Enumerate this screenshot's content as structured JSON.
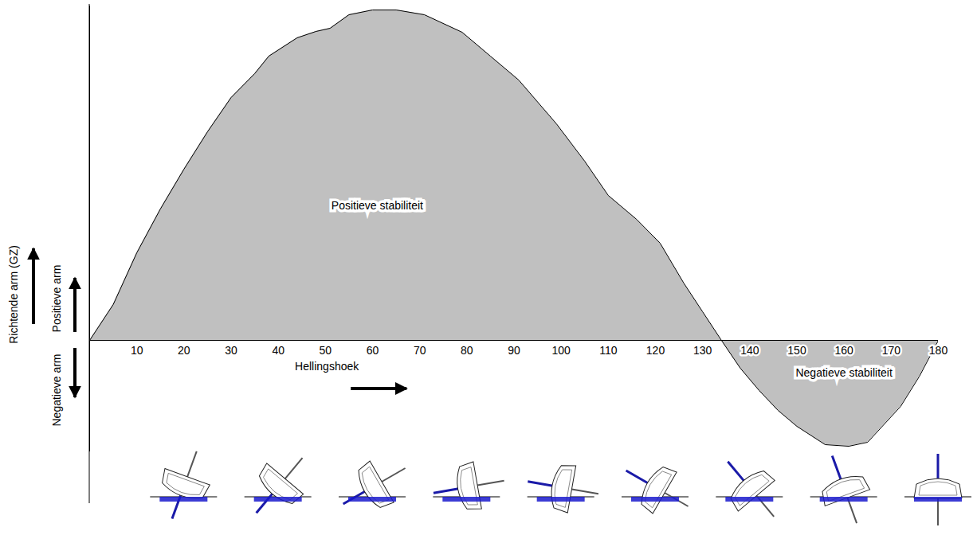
{
  "chart_data": {
    "type": "area",
    "x_label": "Hellingshoek",
    "y_label": "Richtende arm (GZ)",
    "y_label_positive": "Positieve arm",
    "y_label_negative": "Negatieve arm",
    "annotations": [
      {
        "text": "Positieve stabiliteit",
        "x": 61,
        "y": 169
      },
      {
        "text": "Negatieve stabiliteit",
        "x": 160,
        "y": -41
      }
    ],
    "x": [
      0,
      5,
      10,
      15,
      20,
      25,
      30,
      35,
      38,
      44,
      48,
      51,
      55,
      60,
      65,
      71,
      79,
      85,
      91,
      99,
      105,
      110,
      116,
      121,
      126,
      130,
      134,
      138,
      142,
      146,
      150,
      156,
      161,
      165,
      172,
      176,
      180
    ],
    "values": [
      0,
      45,
      110,
      165,
      215,
      262,
      305,
      335,
      357,
      380,
      388,
      392,
      409,
      415,
      415,
      409,
      387,
      357,
      327,
      272,
      225,
      182,
      152,
      122,
      72,
      36,
      0,
      -35,
      -63,
      -88,
      -108,
      -131,
      -133,
      -128,
      -83,
      -45,
      0
    ],
    "color": "#c0c0c0",
    "xlim": [
      0,
      180
    ],
    "xticks": [
      10,
      20,
      30,
      40,
      50,
      60,
      70,
      80,
      90,
      100,
      110,
      120,
      130,
      140,
      150,
      160,
      170,
      180
    ],
    "ylim": [
      -140,
      420
    ],
    "yticks": [],
    "tick_labels": "x",
    "grid": false,
    "boat_heel_angles": [
      20,
      40,
      60,
      80,
      100,
      120,
      140,
      160,
      180
    ]
  }
}
